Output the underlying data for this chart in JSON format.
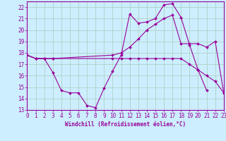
{
  "bg_color": "#cceeff",
  "grid_color": "#aaccbb",
  "line_color": "#990099",
  "xlabel": "Windchill (Refroidissement éolien,°C)",
  "xlim": [
    0,
    23
  ],
  "ylim": [
    13,
    22.5
  ],
  "xticks": [
    0,
    1,
    2,
    3,
    4,
    5,
    6,
    7,
    8,
    9,
    10,
    11,
    12,
    13,
    14,
    15,
    16,
    17,
    18,
    19,
    20,
    21,
    22,
    23
  ],
  "yticks": [
    13,
    14,
    15,
    16,
    17,
    18,
    19,
    20,
    21,
    22
  ],
  "line1_x": [
    0,
    1,
    2,
    3,
    4,
    5,
    6,
    7,
    8,
    9,
    10,
    11,
    12,
    13,
    14,
    15,
    16,
    17,
    18,
    19,
    20,
    21
  ],
  "line1_y": [
    17.8,
    17.5,
    17.5,
    16.3,
    14.7,
    14.5,
    14.5,
    13.4,
    13.2,
    14.9,
    16.4,
    17.8,
    21.4,
    20.6,
    20.7,
    21.0,
    22.2,
    22.3,
    21.1,
    18.7,
    16.5,
    14.7
  ],
  "line2_x": [
    0,
    1,
    2,
    3,
    10,
    11,
    12,
    13,
    14,
    15,
    16,
    17,
    18,
    19,
    20,
    21,
    22,
    23
  ],
  "line2_y": [
    17.8,
    17.5,
    17.5,
    17.5,
    17.8,
    18.0,
    18.5,
    19.2,
    20.0,
    20.5,
    21.0,
    21.3,
    18.8,
    18.8,
    18.8,
    18.5,
    19.0,
    14.5
  ],
  "line3_x": [
    0,
    1,
    2,
    3,
    10,
    11,
    12,
    13,
    14,
    15,
    16,
    17,
    18,
    19,
    20,
    21,
    22,
    23
  ],
  "line3_y": [
    17.8,
    17.5,
    17.5,
    17.5,
    17.5,
    17.5,
    17.5,
    17.5,
    17.5,
    17.5,
    17.5,
    17.5,
    17.5,
    17.0,
    16.5,
    16.0,
    15.5,
    14.5
  ],
  "marker_style": "D",
  "marker_size": 2.0,
  "line_width": 0.8,
  "tick_fontsize": 5.5,
  "xlabel_fontsize": 5.5
}
